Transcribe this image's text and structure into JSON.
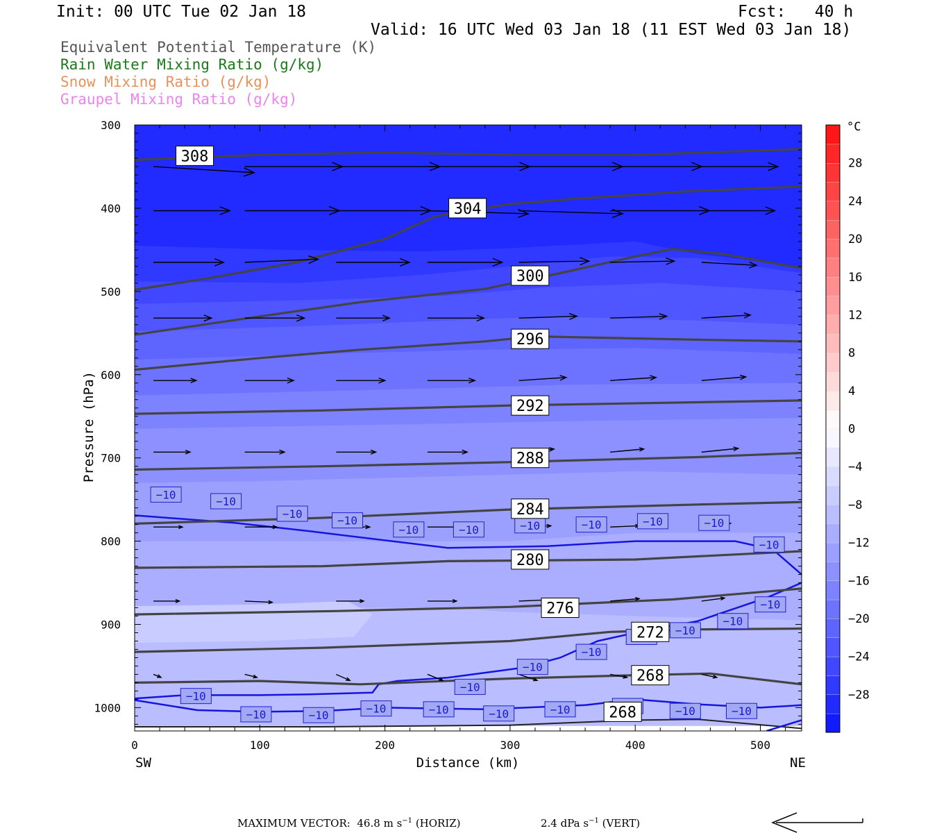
{
  "header": {
    "init": "Init: 00 UTC Tue 02 Jan 18",
    "fcst": "Fcst:   40 h",
    "valid": "Valid: 16 UTC Wed 03 Jan 18 (11 EST Wed 03 Jan 18)"
  },
  "legend": [
    {
      "text": "Equivalent Potential Temperature (K)",
      "color": "#555555"
    },
    {
      "text": "Rain Water Mixing Ratio (g/kg)",
      "color": "#1a7a1a"
    },
    {
      "text": "Snow Mixing Ratio (g/kg)",
      "color": "#e8915a"
    },
    {
      "text": "Graupel Mixing Ratio (g/kg)",
      "color": "#ee82ee"
    }
  ],
  "footer": {
    "label": "MAXIMUM VECTOR:",
    "horiz_value": "46.8",
    "horiz_unit": "m s",
    "horiz_exp": "−1",
    "horiz_tag": "(HORIZ)",
    "vert_value": "2.4",
    "vert_unit": "dPa s",
    "vert_exp": "−1",
    "vert_tag": "(VERT)"
  },
  "chart_data": {
    "type": "cross-section",
    "xlabel": "Distance (km)",
    "ylabel": "Pressure (hPa)",
    "xlim": [
      0,
      533
    ],
    "ylim": [
      1028,
      300
    ],
    "x_ticks": [
      0,
      100,
      200,
      300,
      400,
      500
    ],
    "y_ticks": [
      300,
      400,
      500,
      600,
      700,
      800,
      900,
      1000
    ],
    "x_end_labels": {
      "left": "SW",
      "right": "NE"
    },
    "colorbar": {
      "unit": "°C",
      "tick_labels": [
        "28",
        "24",
        "20",
        "16",
        "12",
        "8",
        "4",
        "0",
        "−4",
        "−8",
        "−12",
        "−16",
        "−20",
        "−24",
        "−28"
      ],
      "tick_values": [
        28,
        24,
        20,
        16,
        12,
        8,
        4,
        0,
        -4,
        -8,
        -12,
        -16,
        -20,
        -24,
        -28
      ],
      "levels": [
        -32,
        -30,
        -28,
        -26,
        -24,
        -22,
        -20,
        -18,
        -16,
        -14,
        -12,
        -10,
        -8,
        -6,
        -4,
        -2,
        0,
        2,
        4,
        6,
        8,
        10,
        12,
        14,
        16,
        18,
        20,
        22,
        24,
        26,
        28,
        30,
        32
      ]
    },
    "temperature_fill": [
      {
        "upper_level": -28,
        "boundary": [
          [
            0,
            300
          ],
          [
            533,
            300
          ]
        ]
      },
      {
        "upper_level": -26,
        "boundary": [
          [
            0,
            445
          ],
          [
            120,
            450
          ],
          [
            230,
            452
          ],
          [
            300,
            448
          ],
          [
            400,
            440
          ],
          [
            450,
            455
          ],
          [
            533,
            470
          ]
        ]
      },
      {
        "upper_level": -24,
        "boundary": [
          [
            0,
            488
          ],
          [
            130,
            490
          ],
          [
            230,
            480
          ],
          [
            300,
            470
          ],
          [
            380,
            458
          ],
          [
            450,
            460
          ],
          [
            533,
            478
          ]
        ]
      },
      {
        "upper_level": -22,
        "boundary": [
          [
            0,
            515
          ],
          [
            150,
            510
          ],
          [
            250,
            505
          ],
          [
            330,
            495
          ],
          [
            420,
            490
          ],
          [
            533,
            500
          ]
        ]
      },
      {
        "upper_level": -20,
        "boundary": [
          [
            0,
            548
          ],
          [
            130,
            542
          ],
          [
            250,
            535
          ],
          [
            330,
            530
          ],
          [
            450,
            535
          ],
          [
            533,
            540
          ]
        ]
      },
      {
        "upper_level": -18,
        "boundary": [
          [
            0,
            582
          ],
          [
            150,
            575
          ],
          [
            280,
            570
          ],
          [
            400,
            568
          ],
          [
            533,
            575
          ]
        ]
      },
      {
        "upper_level": -16,
        "boundary": [
          [
            0,
            625
          ],
          [
            200,
            618
          ],
          [
            350,
            612
          ],
          [
            533,
            610
          ]
        ]
      },
      {
        "upper_level": -14,
        "boundary": [
          [
            0,
            665
          ],
          [
            200,
            660
          ],
          [
            380,
            655
          ],
          [
            533,
            652
          ]
        ]
      },
      {
        "upper_level": -12,
        "boundary": [
          [
            0,
            730
          ],
          [
            100,
            728
          ],
          [
            250,
            722
          ],
          [
            400,
            716
          ],
          [
            533,
            720
          ]
        ]
      },
      {
        "upper_level": -10,
        "boundary": [
          [
            0,
            800
          ],
          [
            150,
            800
          ],
          [
            300,
            800
          ],
          [
            400,
            790
          ],
          [
            533,
            790
          ]
        ]
      },
      {
        "upper_level": -8,
        "boundary": [
          [
            0,
            886
          ],
          [
            150,
            880
          ],
          [
            250,
            880
          ],
          [
            300,
            885
          ],
          [
            400,
            890
          ],
          [
            533,
            895
          ]
        ]
      },
      {
        "upper_level": -6,
        "boundary": [
          [
            0,
            878
          ],
          [
            100,
            876
          ],
          [
            170,
            872
          ],
          [
            190,
            888
          ],
          [
            175,
            915
          ],
          [
            100,
            920
          ],
          [
            0,
            922
          ]
        ]
      }
    ],
    "theta_e": [
      {
        "value": 308,
        "points": [
          [
            0,
            342
          ],
          [
            100,
            336
          ],
          [
            200,
            333
          ],
          [
            300,
            336
          ],
          [
            400,
            336
          ],
          [
            533,
            329
          ]
        ]
      },
      {
        "value": 304,
        "points": [
          [
            0,
            498
          ],
          [
            60,
            484
          ],
          [
            130,
            465
          ],
          [
            200,
            437
          ],
          [
            240,
            410
          ],
          [
            300,
            395
          ],
          [
            350,
            389
          ],
          [
            440,
            380
          ],
          [
            533,
            374
          ]
        ]
      },
      {
        "value": 300,
        "points": [
          [
            0,
            552
          ],
          [
            100,
            530
          ],
          [
            180,
            513
          ],
          [
            280,
            497
          ],
          [
            340,
            478
          ],
          [
            400,
            458
          ],
          [
            430,
            449
          ],
          [
            470,
            455
          ],
          [
            533,
            472
          ]
        ]
      },
      {
        "value": 296,
        "points": [
          [
            0,
            594
          ],
          [
            100,
            580
          ],
          [
            180,
            570
          ],
          [
            280,
            560
          ],
          [
            320,
            554
          ],
          [
            450,
            558
          ],
          [
            533,
            560
          ]
        ]
      },
      {
        "value": 292,
        "points": [
          [
            0,
            647
          ],
          [
            150,
            643
          ],
          [
            300,
            637
          ],
          [
            533,
            631
          ]
        ]
      },
      {
        "value": 288,
        "points": [
          [
            0,
            714
          ],
          [
            150,
            710
          ],
          [
            300,
            705
          ],
          [
            450,
            699
          ],
          [
            533,
            694
          ]
        ]
      },
      {
        "value": 284,
        "points": [
          [
            0,
            779
          ],
          [
            150,
            772
          ],
          [
            300,
            762
          ],
          [
            450,
            756
          ],
          [
            533,
            753
          ]
        ]
      },
      {
        "value": 280,
        "points": [
          [
            0,
            832
          ],
          [
            150,
            830
          ],
          [
            250,
            824
          ],
          [
            400,
            822
          ],
          [
            533,
            812
          ]
        ]
      },
      {
        "value": 276,
        "points": [
          [
            0,
            888
          ],
          [
            160,
            884
          ],
          [
            300,
            879
          ],
          [
            430,
            870
          ],
          [
            533,
            857
          ]
        ]
      },
      {
        "value": 272,
        "points": [
          [
            0,
            933
          ],
          [
            150,
            928
          ],
          [
            300,
            920
          ],
          [
            380,
            909
          ],
          [
            450,
            906
          ],
          [
            533,
            905
          ]
        ]
      },
      {
        "value": 268,
        "points": [
          [
            0,
            970
          ],
          [
            100,
            968
          ],
          [
            180,
            972
          ],
          [
            300,
            965
          ],
          [
            400,
            961
          ],
          [
            460,
            959
          ],
          [
            533,
            972
          ]
        ]
      }
    ],
    "isotherm_minus10": [
      {
        "label": "−10",
        "points": [
          [
            0,
            769
          ],
          [
            80,
            778
          ],
          [
            140,
            788
          ],
          [
            200,
            799
          ],
          [
            250,
            808
          ],
          [
            330,
            806
          ],
          [
            400,
            800
          ],
          [
            480,
            800
          ],
          [
            510,
            810
          ],
          [
            533,
            840
          ]
        ]
      },
      {
        "label": "−10",
        "points": [
          [
            505,
            1028
          ],
          [
            533,
            1015
          ]
        ]
      },
      {
        "label": "−10",
        "points": [
          [
            533,
            850
          ],
          [
            505,
            868
          ],
          [
            450,
            896
          ],
          [
            400,
            910
          ],
          [
            370,
            920
          ],
          [
            340,
            940
          ],
          [
            310,
            952
          ],
          [
            280,
            958
          ],
          [
            250,
            964
          ],
          [
            210,
            968
          ],
          [
            195,
            972
          ],
          [
            190,
            982
          ],
          [
            140,
            984
          ],
          [
            100,
            985
          ],
          [
            40,
            985
          ],
          [
            0,
            989
          ]
        ]
      },
      {
        "label": "−10",
        "points": [
          [
            0,
            991
          ],
          [
            50,
            1003
          ],
          [
            100,
            1005
          ],
          [
            150,
            1004
          ],
          [
            200,
            1000
          ],
          [
            280,
            1002
          ],
          [
            360,
            997
          ],
          [
            400,
            990
          ],
          [
            450,
            996
          ],
          [
            500,
            1000
          ],
          [
            533,
            997
          ]
        ]
      }
    ],
    "isotherm_minus10_labels": [
      [
        25,
        744
      ],
      [
        73,
        752
      ],
      [
        126,
        767
      ],
      [
        170,
        775
      ],
      [
        219,
        786
      ],
      [
        267,
        786
      ],
      [
        316,
        781
      ],
      [
        365,
        780
      ],
      [
        414,
        776
      ],
      [
        463,
        778
      ],
      [
        507,
        804
      ],
      [
        508,
        876
      ],
      [
        478,
        896
      ],
      [
        440,
        907
      ],
      [
        405,
        915
      ],
      [
        365,
        933
      ],
      [
        318,
        951
      ],
      [
        268,
        975
      ],
      [
        49,
        986
      ],
      [
        97,
        1008
      ],
      [
        147,
        1009
      ],
      [
        193,
        1001
      ],
      [
        243,
        1002
      ],
      [
        291,
        1007
      ],
      [
        340,
        1002
      ],
      [
        394,
        998
      ],
      [
        440,
        1004
      ],
      [
        485,
        1004
      ]
    ],
    "theta_e_labels": [
      {
        "text": "308",
        "x": 48,
        "p": 337
      },
      {
        "text": "304",
        "x": 266,
        "p": 400
      },
      {
        "text": "300",
        "x": 316,
        "p": 481
      },
      {
        "text": "296",
        "x": 316,
        "p": 557
      },
      {
        "text": "292",
        "x": 316,
        "p": 637
      },
      {
        "text": "288",
        "x": 316,
        "p": 700
      },
      {
        "text": "284",
        "x": 316,
        "p": 761
      },
      {
        "text": "280",
        "x": 316,
        "p": 822
      },
      {
        "text": "276",
        "x": 340,
        "p": 880
      },
      {
        "text": "272",
        "x": 412,
        "p": 909
      },
      {
        "text": "268",
        "x": 412,
        "p": 961
      },
      {
        "text": "268",
        "x": 390,
        "p": 1005
      }
    ],
    "wind_rows": [
      {
        "p": 350,
        "u": [
          6.6,
          6.4,
          6.8,
          6.7,
          6.8,
          6.0,
          5.0
        ],
        "w": [
          -0.1,
          0.0,
          0.0,
          0.0,
          0.0,
          0.0,
          0.0
        ]
      },
      {
        "p": 403,
        "u": [
          5.0,
          6.2,
          6.2,
          6.6,
          6.8,
          6.5,
          4.8
        ],
        "w": [
          0.0,
          0.0,
          0.0,
          -0.05,
          -0.05,
          0.0,
          0.0
        ]
      },
      {
        "p": 465,
        "u": [
          4.6,
          4.8,
          4.8,
          4.9,
          4.6,
          4.2,
          3.6
        ],
        "w": [
          0.0,
          0.05,
          0.0,
          0.0,
          0.02,
          0.02,
          -0.05
        ]
      },
      {
        "p": 532,
        "u": [
          3.8,
          3.9,
          3.5,
          3.7,
          3.8,
          3.7,
          3.2
        ],
        "w": [
          0.0,
          0.0,
          0.0,
          0.0,
          0.03,
          0.03,
          0.05
        ]
      },
      {
        "p": 607,
        "u": [
          2.8,
          3.2,
          3.2,
          3.1,
          3.1,
          3.0,
          2.9
        ],
        "w": [
          0.0,
          0.0,
          0.0,
          0.0,
          0.05,
          0.05,
          0.06
        ]
      },
      {
        "p": 693,
        "u": [
          2.4,
          2.6,
          2.6,
          2.6,
          2.3,
          2.2,
          2.4
        ],
        "w": [
          0.0,
          0.0,
          0.0,
          0.0,
          0.05,
          0.05,
          0.06
        ]
      },
      {
        "p": 783,
        "u": [
          1.9,
          2.1,
          2.2,
          2.3,
          2.1,
          1.9,
          1.9
        ],
        "w": [
          0.0,
          0.0,
          0.0,
          0.0,
          0.02,
          0.02,
          0.06
        ]
      },
      {
        "p": 872,
        "u": [
          1.7,
          1.8,
          1.8,
          1.9,
          1.8,
          1.9,
          1.5
        ],
        "w": [
          0.0,
          -0.02,
          0.0,
          0.0,
          0.02,
          0.04,
          0.05
        ]
      },
      {
        "p": 960,
        "u": [
          0.5,
          0.8,
          0.9,
          1.0,
          1.2,
          1.1,
          1.0
        ],
        "w": [
          -0.05,
          -0.05,
          -0.1,
          -0.1,
          -0.1,
          -0.05,
          -0.05
        ]
      }
    ],
    "wind_x": [
      15,
      88,
      161,
      234,
      307,
      380,
      453
    ]
  }
}
